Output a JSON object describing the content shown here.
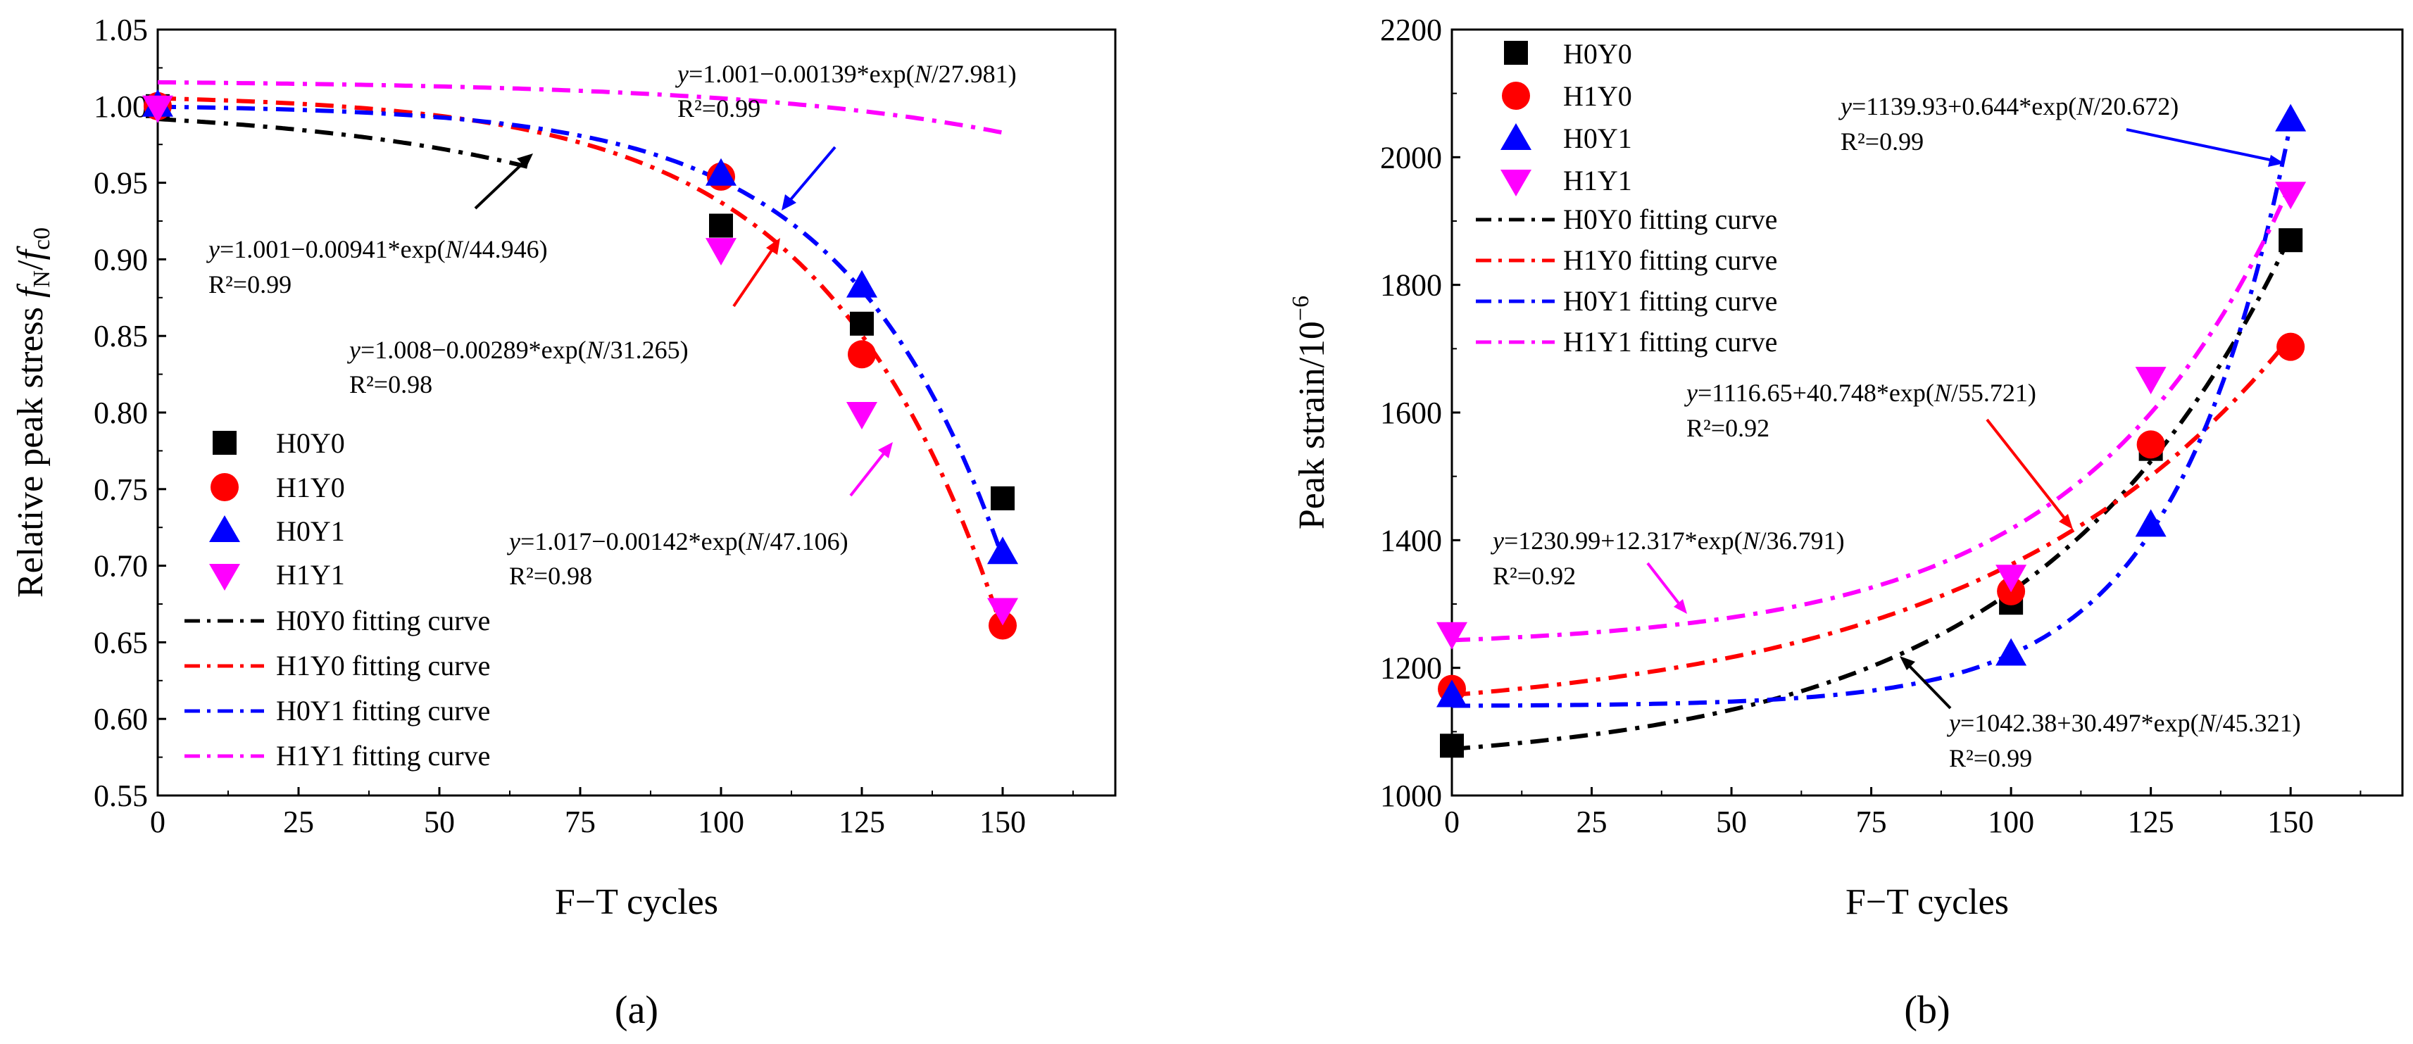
{
  "chart_data": [
    {
      "type": "scatter",
      "panel_label": "(a)",
      "xlabel": "F−T cycles",
      "ylabel_main": "Relative peak stress ",
      "ylabel_num": "f",
      "ylabel_num_sub": "N",
      "ylabel_sep": "/",
      "ylabel_den": "f",
      "ylabel_den_sub": "c0",
      "xlim": [
        0,
        170
      ],
      "ylim": [
        0.55,
        1.05
      ],
      "xticks": [
        0,
        25,
        50,
        75,
        100,
        125,
        150
      ],
      "yticks": [
        0.55,
        0.6,
        0.65,
        0.7,
        0.75,
        0.8,
        0.85,
        0.9,
        0.95,
        1.0,
        1.05
      ],
      "legend_position": "bottom-left",
      "series": [
        {
          "name": "H0Y0",
          "marker": "square",
          "color": "#000000",
          "x": [
            0,
            100,
            125,
            150
          ],
          "y": [
            1.0,
            0.922,
            0.858,
            0.744
          ]
        },
        {
          "name": "H1Y0",
          "marker": "circle",
          "color": "#ff0000",
          "x": [
            0,
            100,
            125,
            150
          ],
          "y": [
            1.0,
            0.954,
            0.838,
            0.661
          ]
        },
        {
          "name": "H0Y1",
          "marker": "triangle-up",
          "color": "#0000ff",
          "x": [
            0,
            100,
            125,
            150
          ],
          "y": [
            1.0,
            0.955,
            0.882,
            0.708
          ]
        },
        {
          "name": "H1Y1",
          "marker": "triangle-down",
          "color": "#ff00ff",
          "x": [
            0,
            100,
            125,
            150
          ],
          "y": [
            1.0,
            0.907,
            0.8,
            0.672
          ]
        }
      ],
      "fits": [
        {
          "name": "H0Y0 fitting curve",
          "color": "#000000",
          "a": 1.001,
          "b": -0.00941,
          "c": 44.946,
          "x_end": 67,
          "equation": "=1.001−0.00941*exp(",
          "r2": "R²=0.99"
        },
        {
          "name": "H1Y0 fitting curve",
          "color": "#ff0000",
          "a": 1.008,
          "b": -0.00289,
          "c": 31.265,
          "x_end": 150,
          "equation": "=1.008−0.00289*exp(",
          "r2": "R²=0.98"
        },
        {
          "name": "H0Y1 fitting curve",
          "color": "#0000ff",
          "a": 1.001,
          "b": -0.00139,
          "c": 27.981,
          "x_end": 150,
          "equation": "=1.001−0.00139*exp(",
          "r2": "R²=0.99"
        },
        {
          "name": "H1Y1 fitting curve",
          "color": "#ff00ff",
          "a": 1.017,
          "b": -0.00142,
          "c": 47.106,
          "x_end": 150,
          "equation": "=1.017−0.00142*exp(",
          "r2": "R²=0.98"
        }
      ],
      "eq_y_var": "y",
      "eq_n_var": "N",
      "eq_suffixes": [
        "/44.946)",
        "/31.265)",
        "/27.981)",
        "/47.106)"
      ]
    },
    {
      "type": "scatter",
      "panel_label": "(b)",
      "xlabel": "F−T cycles",
      "ylabel_main": "Peak strain/10",
      "ylabel_exp": "−6",
      "xlim": [
        0,
        170
      ],
      "ylim": [
        1000,
        2200
      ],
      "xticks": [
        0,
        25,
        50,
        75,
        100,
        125,
        150
      ],
      "yticks": [
        1000,
        1200,
        1400,
        1600,
        1800,
        2000,
        2200
      ],
      "legend_position": "top-left",
      "series": [
        {
          "name": "H0Y0",
          "marker": "square",
          "color": "#000000",
          "x": [
            0,
            100,
            125,
            150
          ],
          "y": [
            1078,
            1302,
            1543,
            1870
          ]
        },
        {
          "name": "H1Y0",
          "marker": "circle",
          "color": "#ff0000",
          "x": [
            0,
            100,
            125,
            150
          ],
          "y": [
            1167,
            1320,
            1550,
            1703
          ]
        },
        {
          "name": "H0Y1",
          "marker": "triangle-up",
          "color": "#0000ff",
          "x": [
            0,
            100,
            125,
            150
          ],
          "y": [
            1155,
            1220,
            1422,
            2057
          ]
        },
        {
          "name": "H1Y1",
          "marker": "triangle-down",
          "color": "#ff00ff",
          "x": [
            0,
            100,
            125,
            150
          ],
          "y": [
            1255,
            1345,
            1655,
            1945
          ]
        }
      ],
      "fits": [
        {
          "name": "H0Y0 fitting curve",
          "color": "#000000",
          "a": 1042.38,
          "b": 30.497,
          "c": 45.321,
          "x_end": 150,
          "equation": "=1042.38+30.497*exp(",
          "r2": "R²=0.99"
        },
        {
          "name": "H1Y0 fitting curve",
          "color": "#ff0000",
          "a": 1116.65,
          "b": 40.748,
          "c": 55.721,
          "x_end": 150,
          "equation": "=1116.65+40.748*exp(",
          "r2": "R²=0.92"
        },
        {
          "name": "H0Y1 fitting curve",
          "color": "#0000ff",
          "a": 1139.93,
          "b": 0.644,
          "c": 20.672,
          "x_end": 150,
          "equation": "=1139.93+0.644*exp(",
          "r2": "R²=0.99"
        },
        {
          "name": "H1Y1 fitting curve",
          "color": "#ff00ff",
          "a": 1230.99,
          "b": 12.317,
          "c": 36.791,
          "x_end": 150,
          "equation": "=1230.99+12.317*exp(",
          "r2": "R²=0.92"
        }
      ],
      "eq_y_var": "y",
      "eq_n_var": "N",
      "eq_suffixes": [
        "/45.321)",
        "/55.721)",
        "/20.672)",
        "/36.791)"
      ]
    }
  ]
}
